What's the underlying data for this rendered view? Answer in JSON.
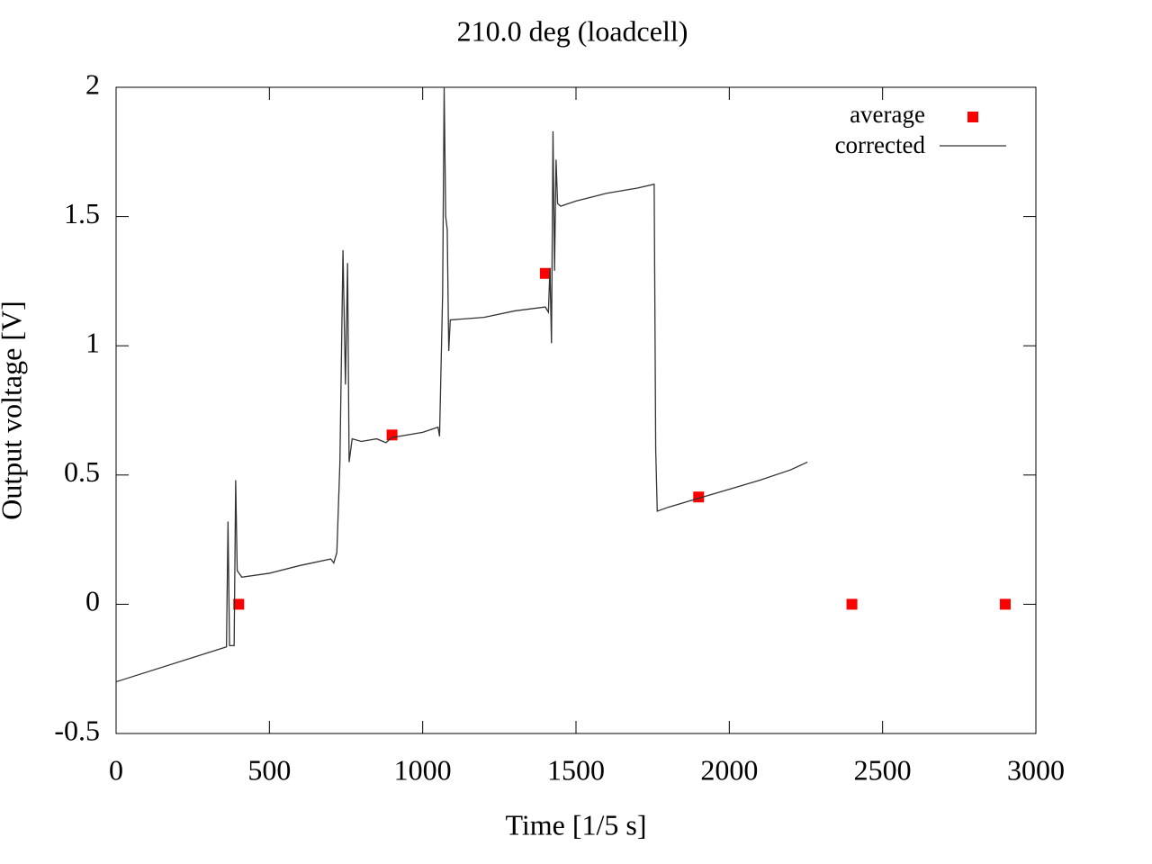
{
  "chart_data": {
    "type": "line",
    "title": "210.0 deg (loadcell)",
    "xlabel": "Time [1/5 s]",
    "ylabel": "Output voltage [V]",
    "xlim": [
      0,
      3000
    ],
    "ylim": [
      -0.5,
      2
    ],
    "xticks": [
      0,
      500,
      1000,
      1500,
      2000,
      2500,
      3000
    ],
    "yticks": [
      -0.5,
      0,
      0.5,
      1,
      1.5,
      2
    ],
    "legend": "upper right",
    "series": [
      {
        "name": "average",
        "type": "scatter",
        "color": "#ff0000",
        "x": [
          400,
          900,
          1400,
          1900,
          2400,
          2900
        ],
        "values": [
          0,
          0.655,
          1.28,
          0.415,
          0,
          0
        ]
      },
      {
        "name": "corrected",
        "type": "line",
        "color": "#333333",
        "x": [
          0,
          360,
          365,
          370,
          385,
          390,
          395,
          410,
          500,
          600,
          700,
          710,
          720,
          730,
          740,
          748,
          755,
          760,
          770,
          800,
          850,
          880,
          900,
          1000,
          1050,
          1055,
          1065,
          1070,
          1075,
          1080,
          1085,
          1090,
          1200,
          1300,
          1400,
          1410,
          1415,
          1420,
          1425,
          1430,
          1435,
          1440,
          1450,
          1500,
          1600,
          1700,
          1755,
          1760,
          1765,
          1800,
          1900,
          2000,
          2100,
          2200,
          2255
        ],
        "values": [
          -0.3,
          -0.165,
          0.32,
          -0.16,
          -0.16,
          0.48,
          0.13,
          0.105,
          0.12,
          0.15,
          0.175,
          0.16,
          0.2,
          0.55,
          1.37,
          0.85,
          1.32,
          0.55,
          0.64,
          0.63,
          0.64,
          0.625,
          0.645,
          0.665,
          0.685,
          0.65,
          1.2,
          2.0,
          1.5,
          1.45,
          0.98,
          1.1,
          1.11,
          1.135,
          1.15,
          1.13,
          1.3,
          1.01,
          1.83,
          1.29,
          1.72,
          1.55,
          1.54,
          1.56,
          1.59,
          1.61,
          1.625,
          0.6,
          0.36,
          0.375,
          0.41,
          0.445,
          0.48,
          0.52,
          0.55
        ]
      }
    ]
  }
}
